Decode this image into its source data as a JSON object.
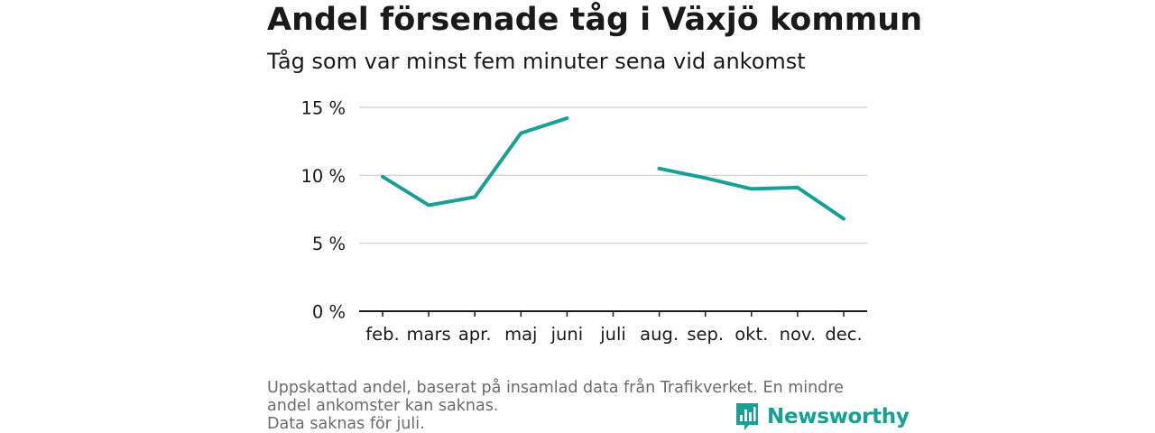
{
  "title": "Andel försenade tåg i Växjö kommun",
  "subtitle": "Tåg som var minst fem minuter sena vid ankomst",
  "footnote": {
    "line1": "Uppskattad andel, baserat på insamlad data från Trafikverket. En mindre andel ankomster kan saknas.",
    "line2": "Data saknas för juli."
  },
  "logo": {
    "text": "Newsworthy",
    "icon": "newsworthy-chart-bubble-icon",
    "color": "#16a096"
  },
  "colors": {
    "line": "#16a096",
    "grid": "#d6d6d6",
    "axis": "#1a1a1a"
  },
  "chart_data": {
    "type": "line",
    "categories": [
      "feb.",
      "mars",
      "apr.",
      "maj",
      "juni",
      "juli",
      "aug.",
      "sep.",
      "okt.",
      "nov.",
      "dec."
    ],
    "series": [
      {
        "values": [
          9.9,
          7.8,
          8.4,
          13.1,
          14.2,
          null,
          10.5,
          9.8,
          9.0,
          9.1,
          6.8
        ]
      }
    ],
    "ylim": [
      0,
      15
    ],
    "yticks": [
      0,
      5,
      10,
      15
    ],
    "ytick_labels": [
      "0 %",
      "5 %",
      "10 %",
      "15 %"
    ],
    "xlabel": "",
    "ylabel": "",
    "grid": true,
    "legend": "none"
  }
}
